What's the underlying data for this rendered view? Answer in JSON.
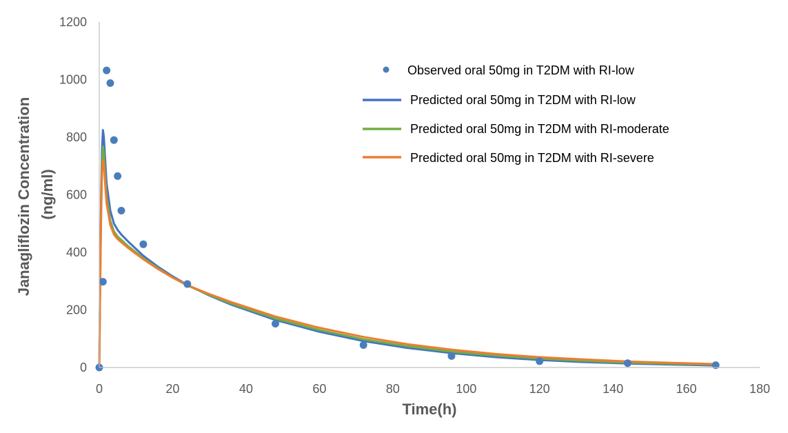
{
  "chart_data": {
    "type": "line",
    "title": "",
    "xlabel": "Time(h)",
    "ylabel_line1": "Janagliflozin Concentration",
    "ylabel_line2": "(ng/ml)",
    "xlim": [
      0,
      180
    ],
    "ylim": [
      0,
      1200
    ],
    "xticks": [
      0,
      20,
      40,
      60,
      80,
      100,
      120,
      140,
      160,
      180
    ],
    "yticks": [
      0,
      200,
      400,
      600,
      800,
      1000,
      1200
    ],
    "grid": false,
    "legend_position": "top-right",
    "series": [
      {
        "name": "Observed oral 50mg in T2DM with RI-low",
        "kind": "scatter",
        "color": "#4a7ebb",
        "x": [
          0,
          1,
          2,
          3,
          4,
          5,
          6,
          12,
          24,
          48,
          72,
          96,
          120,
          144,
          168
        ],
        "y": [
          0,
          298,
          1032,
          988,
          790,
          665,
          545,
          428,
          290,
          152,
          78,
          40,
          22,
          15,
          8
        ]
      },
      {
        "name": "Predicted oral 50mg in T2DM with RI-low",
        "kind": "line",
        "color": "#4472c4",
        "x": [
          0,
          0.25,
          0.5,
          0.75,
          1,
          1.25,
          1.5,
          2,
          3,
          4,
          5,
          6,
          8,
          10,
          12,
          16,
          20,
          24,
          30,
          36,
          48,
          60,
          72,
          84,
          96,
          108,
          120,
          132,
          144,
          156,
          168
        ],
        "y": [
          0,
          310,
          600,
          760,
          825,
          800,
          745,
          640,
          545,
          500,
          478,
          462,
          436,
          412,
          388,
          350,
          317,
          287,
          250,
          218,
          165,
          124,
          92,
          68,
          50,
          36,
          26,
          19,
          14,
          10,
          7
        ]
      },
      {
        "name": "Predicted oral 50mg in T2DM with RI-moderate",
        "kind": "line",
        "color": "#70ad47",
        "x": [
          0,
          0.25,
          0.5,
          0.75,
          1,
          1.25,
          1.5,
          2,
          3,
          4,
          5,
          6,
          8,
          10,
          12,
          16,
          20,
          24,
          30,
          36,
          48,
          60,
          72,
          84,
          96,
          108,
          120,
          132,
          144,
          156,
          168
        ],
        "y": [
          0,
          290,
          560,
          710,
          768,
          742,
          690,
          595,
          510,
          473,
          455,
          443,
          420,
          400,
          380,
          345,
          313,
          285,
          252,
          222,
          170,
          130,
          98,
          74,
          55,
          41,
          31,
          23,
          17,
          13,
          10
        ]
      },
      {
        "name": "Predicted oral 50mg in T2DM with RI-severe",
        "kind": "line",
        "color": "#ed7d31",
        "x": [
          0,
          0.25,
          0.5,
          0.75,
          1,
          1.25,
          1.5,
          2,
          3,
          4,
          5,
          6,
          8,
          10,
          12,
          16,
          20,
          24,
          30,
          36,
          48,
          60,
          72,
          84,
          96,
          108,
          120,
          132,
          144,
          156,
          168
        ],
        "y": [
          0,
          270,
          530,
          680,
          722,
          700,
          655,
          570,
          495,
          462,
          446,
          435,
          414,
          395,
          376,
          342,
          312,
          286,
          255,
          227,
          177,
          138,
          106,
          81,
          62,
          47,
          36,
          28,
          21,
          16,
          12
        ]
      }
    ]
  }
}
